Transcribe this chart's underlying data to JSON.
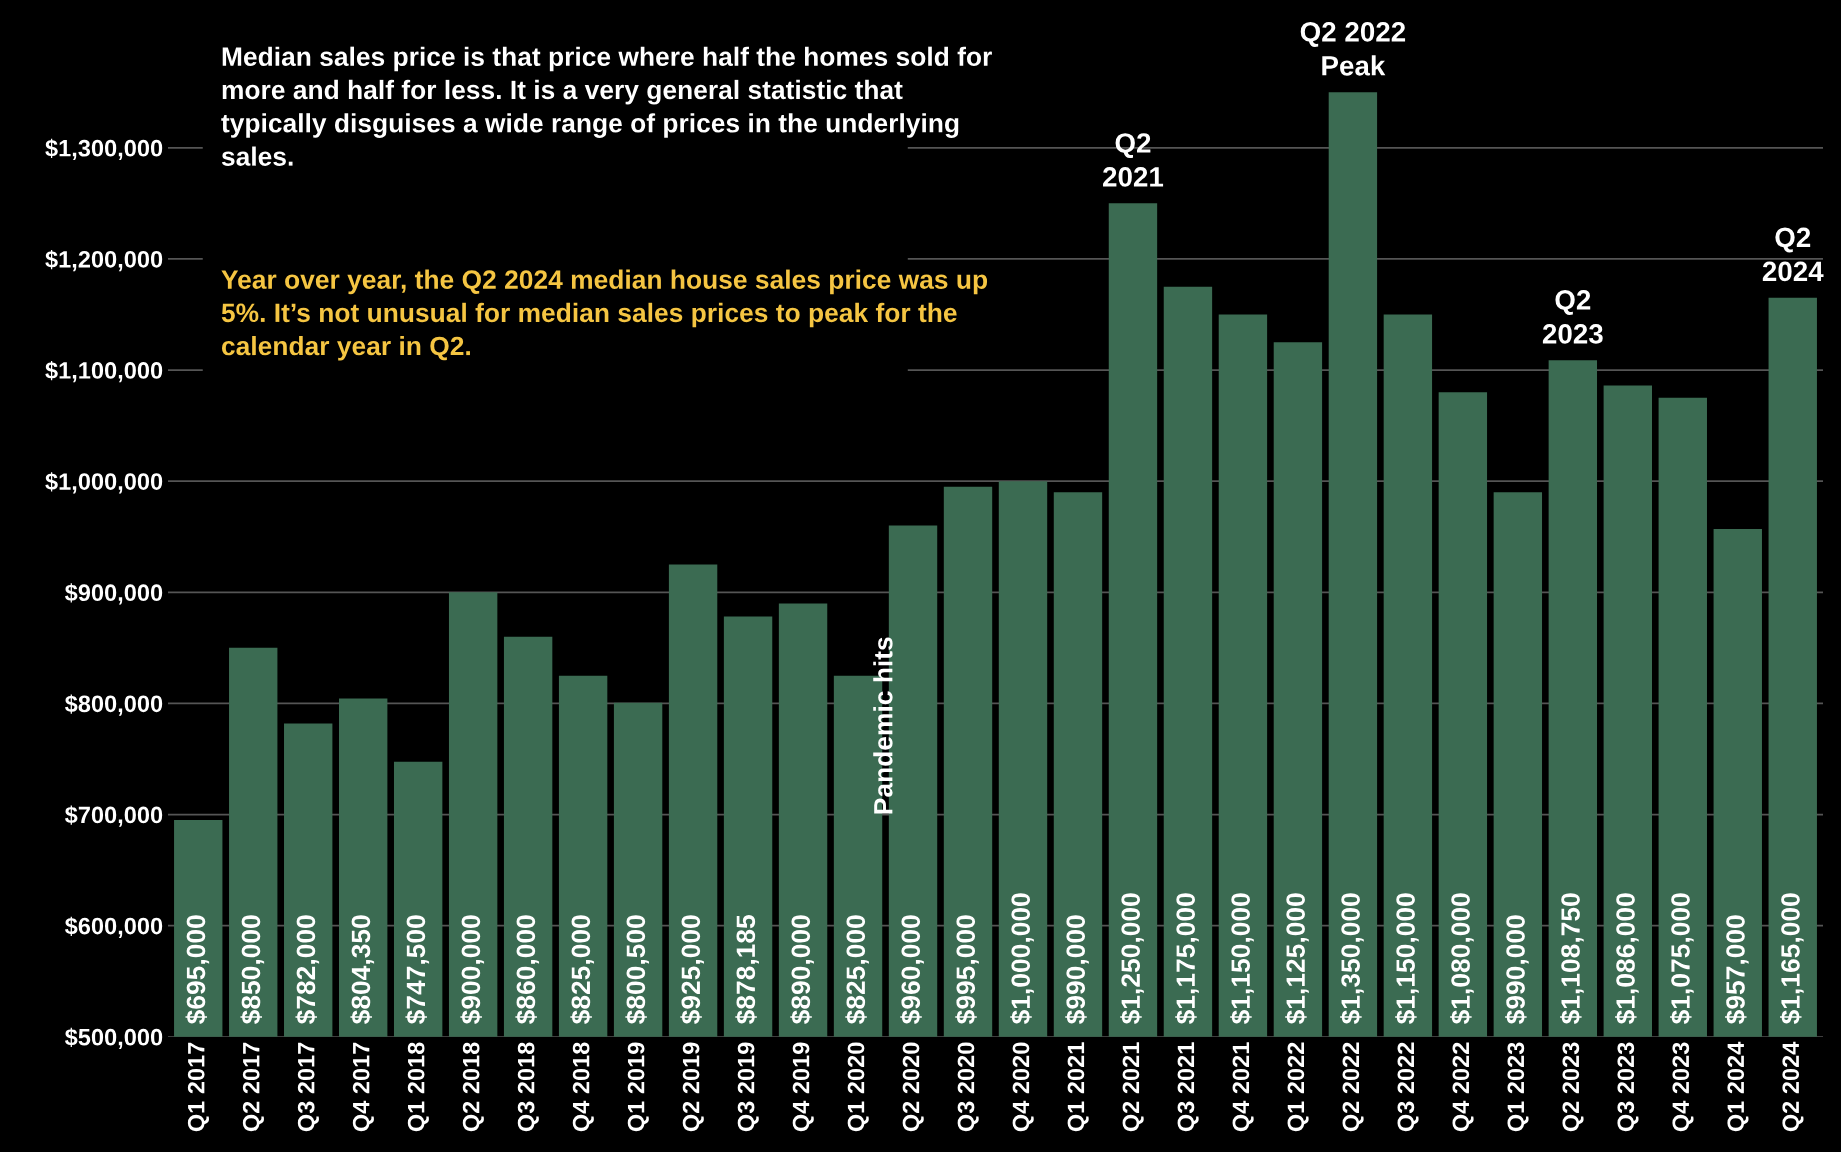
{
  "chart_data": {
    "type": "bar",
    "categories": [
      "Q1 2017",
      "Q2 2017",
      "Q3 2017",
      "Q4 2017",
      "Q1 2018",
      "Q2 2018",
      "Q3 2018",
      "Q4 2018",
      "Q1 2019",
      "Q2 2019",
      "Q3 2019",
      "Q4 2019",
      "Q1 2020",
      "Q2 2020",
      "Q3 2020",
      "Q4 2020",
      "Q1 2021",
      "Q2 2021",
      "Q3 2021",
      "Q4 2021",
      "Q1 2022",
      "Q2 2022",
      "Q3 2022",
      "Q4 2022",
      "Q1 2023",
      "Q2 2023",
      "Q3 2023",
      "Q4 2023",
      "Q1 2024",
      "Q2 2024"
    ],
    "values": [
      695000,
      850000,
      782000,
      804350,
      747500,
      900000,
      860000,
      825000,
      800500,
      925000,
      878185,
      890000,
      825000,
      960000,
      995000,
      1000000,
      990000,
      1250000,
      1175000,
      1150000,
      1125000,
      1350000,
      1150000,
      1080000,
      990000,
      1108750,
      1086000,
      1075000,
      957000,
      1165000
    ],
    "value_labels": [
      "$695,000",
      "$850,000",
      "$782,000",
      "$804,350",
      "$747,500",
      "$900,000",
      "$860,000",
      "$825,000",
      "$800,500",
      "$925,000",
      "$878,185",
      "$890,000",
      "$825,000",
      "$960,000",
      "$995,000",
      "$1,000,000",
      "$990,000",
      "$1,250,000",
      "$1,175,000",
      "$1,150,000",
      "$1,125,000",
      "$1,350,000",
      "$1,150,000",
      "$1,080,000",
      "$990,000",
      "$1,108,750",
      "$1,086,000",
      "$1,075,000",
      "$957,000",
      "$1,165,000"
    ],
    "color": "#3b6b52",
    "ylim": [
      500000,
      1433000
    ],
    "yticks": [
      {
        "value": 500000,
        "label": "$500,000"
      },
      {
        "value": 600000,
        "label": "$600,000"
      },
      {
        "value": 700000,
        "label": "$700,000"
      },
      {
        "value": 800000,
        "label": "$800,000"
      },
      {
        "value": 900000,
        "label": "$900,000"
      },
      {
        "value": 1000000,
        "label": "$1,000,000"
      },
      {
        "value": 1100000,
        "label": "$1,100,000"
      },
      {
        "value": 1200000,
        "label": "$1,200,000"
      },
      {
        "value": 1300000,
        "label": "$1,300,000"
      }
    ],
    "grid": "y",
    "annotations": [
      "Median sales price is that price where half the homes sold for more and half for less. It is a very general statistic that typically disguises a wide range of prices in the underlying sales.",
      "Year over year, the Q2 2024 median house sales price was up 5%. It’s not unusual for median sales prices to peak for the calendar year in Q2.",
      "Pandemic hits",
      {
        "text": "Q2\n2021",
        "x": "Q2 2021",
        "y": 1250000
      },
      {
        "text": "Q2 2022\nPeak",
        "x": "Q2 2022",
        "y": 1350000
      },
      {
        "text": "Q2\n2023",
        "x": "Q2 2023",
        "y": 1108750
      },
      {
        "text": "Q2\n2024",
        "x": "Q2 2024",
        "y": 1165000
      }
    ]
  }
}
